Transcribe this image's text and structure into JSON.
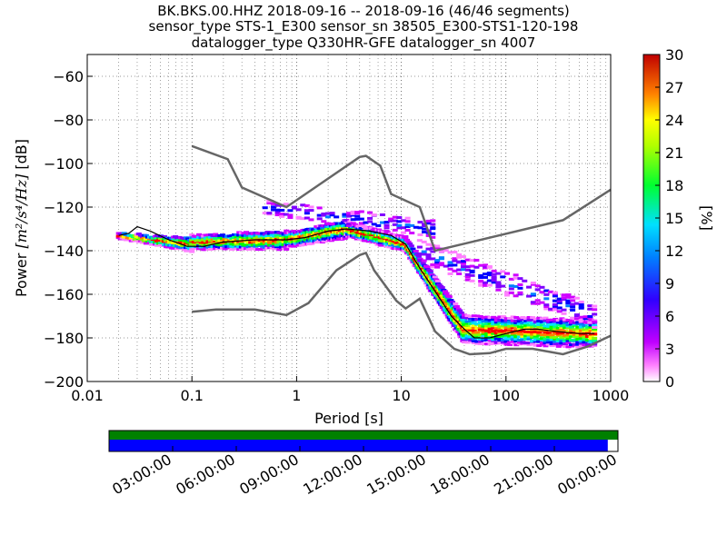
{
  "title_lines": [
    "BK.BKS.00.HHZ   2018-09-16 -- 2018-09-16  (46/46 segments)",
    "sensor_type STS-1_E300 sensor_sn 38505_E300-STS1-120-198",
    "datalogger_type Q330HR-GFE datalogger_sn 4007"
  ],
  "chart_data": {
    "type": "heatmap",
    "xlabel": "Period [s]",
    "ylabel_prefix": "Power ",
    "ylabel_math": "[m²/s⁴/Hz]",
    "ylabel_suffix": " [dB]",
    "x_scale": "log",
    "xlim": [
      0.01,
      1000
    ],
    "ylim": [
      -200,
      -50
    ],
    "x_ticks": [
      0.01,
      0.1,
      1,
      10,
      100,
      1000
    ],
    "x_tick_labels": [
      "0.01",
      "0.1",
      "1",
      "10",
      "100",
      "1000"
    ],
    "y_ticks": [
      -200,
      -180,
      -160,
      -140,
      -120,
      -100,
      -80,
      -60
    ],
    "y_tick_labels": [
      "−200",
      "−180",
      "−160",
      "−140",
      "−120",
      "−100",
      "−80",
      "−60"
    ],
    "grid": true,
    "colorbar": {
      "label": "[%]",
      "range": [
        0,
        30
      ],
      "ticks": [
        0,
        3,
        6,
        9,
        12,
        15,
        18,
        21,
        24,
        27,
        30
      ],
      "tick_labels": [
        "0",
        "3",
        "6",
        "9",
        "12",
        "15",
        "18",
        "21",
        "24",
        "27",
        "30"
      ]
    },
    "noise_models": [
      {
        "name": "high",
        "points": [
          [
            0.1,
            -92
          ],
          [
            0.22,
            -98
          ],
          [
            0.3,
            -111
          ],
          [
            0.8,
            -120
          ],
          [
            4.0,
            -97
          ],
          [
            4.6,
            -96.5
          ],
          [
            6.3,
            -101
          ],
          [
            8.0,
            -114
          ],
          [
            15.0,
            -120
          ],
          [
            21.0,
            -140
          ],
          [
            350,
            -126
          ],
          [
            1000,
            -112
          ]
        ]
      },
      {
        "name": "low",
        "points": [
          [
            0.1,
            -168
          ],
          [
            0.17,
            -167
          ],
          [
            0.4,
            -167
          ],
          [
            0.8,
            -169.5
          ],
          [
            1.3,
            -164
          ],
          [
            2.4,
            -149
          ],
          [
            4.0,
            -142
          ],
          [
            4.6,
            -141
          ],
          [
            5.5,
            -149
          ],
          [
            9.0,
            -163
          ],
          [
            11.0,
            -166.5
          ],
          [
            15.0,
            -162
          ],
          [
            21.0,
            -177
          ],
          [
            32.0,
            -185
          ],
          [
            45.0,
            -187.5
          ],
          [
            70.0,
            -187
          ],
          [
            100.0,
            -185
          ],
          [
            180.0,
            -185
          ],
          [
            350.0,
            -187.5
          ],
          [
            600.0,
            -184
          ],
          [
            1000.0,
            -179
          ]
        ]
      }
    ],
    "mode_line": [
      [
        0.02,
        -133
      ],
      [
        0.025,
        -132
      ],
      [
        0.03,
        -129
      ],
      [
        0.04,
        -131
      ],
      [
        0.06,
        -135
      ],
      [
        0.09,
        -138
      ],
      [
        0.13,
        -138
      ],
      [
        0.2,
        -136
      ],
      [
        0.4,
        -135
      ],
      [
        0.8,
        -135
      ],
      [
        1.2,
        -134
      ],
      [
        2.0,
        -131
      ],
      [
        3.0,
        -130
      ],
      [
        5.0,
        -131
      ],
      [
        8.0,
        -133
      ],
      [
        11.0,
        -137
      ],
      [
        15.0,
        -148
      ],
      [
        22.0,
        -160
      ],
      [
        30.0,
        -170
      ],
      [
        40.0,
        -176
      ],
      [
        50.0,
        -180
      ],
      [
        70.0,
        -180
      ],
      [
        100.0,
        -178
      ],
      [
        150.0,
        -176
      ],
      [
        200.0,
        -176
      ],
      [
        300.0,
        -177
      ],
      [
        500.0,
        -178
      ],
      [
        700.0,
        -178
      ]
    ],
    "ppsd_heatmap": [
      {
        "x": [
          0.02,
          0.1
        ],
        "mode": [
          -133,
          -137
        ],
        "spread": [
          1,
          3
        ]
      },
      {
        "x": [
          0.1,
          0.8
        ],
        "mode": [
          -136,
          -135
        ],
        "spread": [
          3,
          4
        ]
      },
      {
        "x": [
          0.8,
          3.0
        ],
        "mode": [
          -135,
          -130
        ],
        "spread": [
          3,
          4
        ]
      },
      {
        "x": [
          3.0,
          11.0
        ],
        "mode": [
          -130,
          -137
        ],
        "spread": [
          3,
          3
        ]
      },
      {
        "x": [
          11.0,
          40.0
        ],
        "mode": [
          -137,
          -176
        ],
        "spread": [
          3,
          6
        ]
      },
      {
        "x": [
          40.0,
          700.0
        ],
        "mode": [
          -176,
          -178
        ],
        "spread": [
          6,
          6
        ]
      },
      {
        "x": [
          0.5,
          20.0
        ],
        "mode": [
          -120,
          -130
        ],
        "spread": [
          3,
          4
        ],
        "sparse": true
      },
      {
        "x": [
          15.0,
          700.0
        ],
        "mode": [
          -140,
          -170
        ],
        "spread": [
          5,
          5
        ],
        "sparse": true
      }
    ]
  },
  "timeline": {
    "tick_labels": [
      "03:00:00",
      "06:00:00",
      "09:00:00",
      "12:00:00",
      "15:00:00",
      "18:00:00",
      "21:00:00",
      "00:00:00"
    ],
    "data_fraction": 0.98,
    "colors": {
      "top": "#008000",
      "bottom": "#0000ff"
    }
  }
}
